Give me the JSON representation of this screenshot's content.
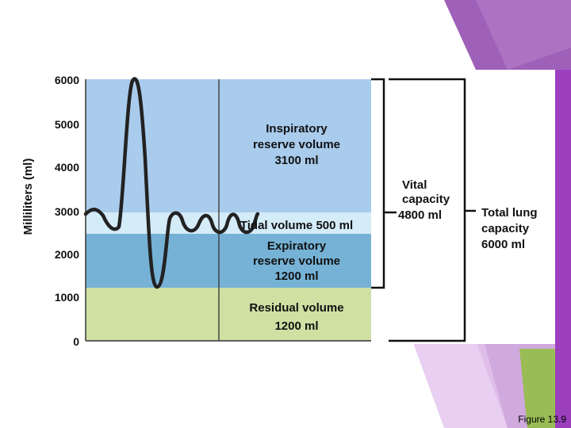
{
  "y_axis": {
    "label": "Milliliters (ml)",
    "ticks": [
      "6000",
      "5000",
      "4000",
      "3000",
      "2000",
      "1000",
      "0"
    ]
  },
  "regions": {
    "inspiratory_reserve": {
      "line1": "Inspiratory",
      "line2": "reserve volume",
      "line3": "3100 ml",
      "color": "#a9cbec"
    },
    "tidal": {
      "text": "Tidal volume 500 ml",
      "color": "#d4ebf8"
    },
    "expiratory_reserve": {
      "line1": "Expiratory",
      "line2": "reserve volume",
      "line3": "1200 ml",
      "color": "#75b2d5"
    },
    "residual": {
      "line1": "Residual volume",
      "line2": "1200 ml",
      "color": "#cfe0a3"
    }
  },
  "capacities": {
    "vital": {
      "line1": "Vital",
      "line2": "capacity",
      "line3": "4800 ml"
    },
    "total": {
      "line1": "Total lung",
      "line2": "capacity",
      "line3": "6000 ml"
    }
  },
  "caption": "Figure 13.9"
}
